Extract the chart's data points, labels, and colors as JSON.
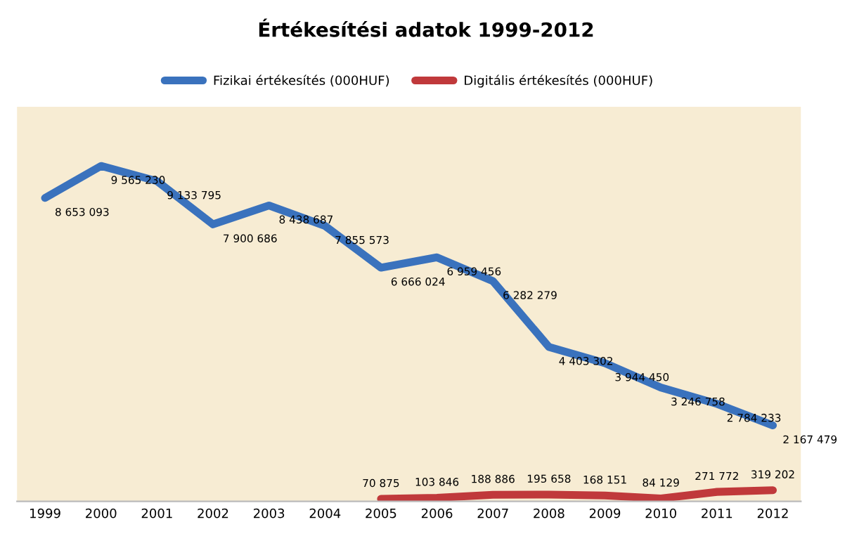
{
  "chart_data": {
    "type": "line",
    "title": "Értékesítési adatok 1999-2012",
    "categories": [
      "1999",
      "2000",
      "2001",
      "2002",
      "2003",
      "2004",
      "2005",
      "2006",
      "2007",
      "2008",
      "2009",
      "2010",
      "2011",
      "2012"
    ],
    "series": [
      {
        "name": "Fizikai értékesítés (000HUF)",
        "color": "#3a72bd",
        "values": [
          8653093,
          9565230,
          9133795,
          7900686,
          8438687,
          7855573,
          6666024,
          6959456,
          6282279,
          4403302,
          3944450,
          3246758,
          2784233,
          2167479
        ],
        "value_labels": [
          "8 653 093",
          "9 565 230",
          "9 133 795",
          "7 900 686",
          "8 438 687",
          "7 855 573",
          "6 666 024",
          "6 959 456",
          "6 282 279",
          "4 403 302",
          "3 944 450",
          "3 246 758",
          "2 784 233",
          "2 167 479"
        ]
      },
      {
        "name": "Digitális értékesítés (000HUF)",
        "color": "#c0393b",
        "values": [
          null,
          null,
          null,
          null,
          null,
          null,
          70875,
          103846,
          188886,
          195658,
          168151,
          84129,
          271772,
          319202
        ],
        "value_labels": [
          null,
          null,
          null,
          null,
          null,
          null,
          "70 875",
          "103 846",
          "188 886",
          "195 658",
          "168 151",
          "84 129",
          "271 772",
          "319 202"
        ]
      }
    ],
    "ylim": [
      0,
      11250000
    ],
    "tick_labels": "x",
    "legend": "top",
    "grid": false,
    "marker": "none",
    "line_style": "solid"
  }
}
